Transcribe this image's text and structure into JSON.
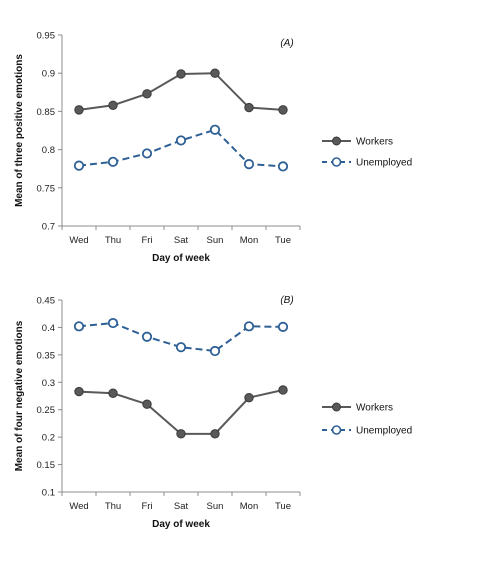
{
  "chart_data": [
    {
      "type": "line",
      "panel_label": "(A)",
      "xlabel": "Day of week",
      "ylabel": "Mean of three positive emotions",
      "categories": [
        "Wed",
        "Thu",
        "Fri",
        "Sat",
        "Sun",
        "Mon",
        "Tue"
      ],
      "ylim": [
        0.7,
        0.95
      ],
      "yticks": [
        "0.7",
        "0.75",
        "0.8",
        "0.85",
        "0.9",
        "0.95"
      ],
      "grid": false,
      "legend_position": "right",
      "series": [
        {
          "name": "Workers",
          "color": "#595959",
          "style": "solid",
          "marker": "filled-circle",
          "values": [
            0.852,
            0.858,
            0.873,
            0.899,
            0.9,
            0.855,
            0.852
          ]
        },
        {
          "name": "Unemployed",
          "color": "#2e6096",
          "style": "dashed",
          "marker": "open-circle",
          "values": [
            0.779,
            0.784,
            0.795,
            0.812,
            0.826,
            0.781,
            0.778
          ]
        }
      ]
    },
    {
      "type": "line",
      "panel_label": "(B)",
      "xlabel": "Day of week",
      "ylabel": "Mean of four negative emotions",
      "categories": [
        "Wed",
        "Thu",
        "Fri",
        "Sat",
        "Sun",
        "Mon",
        "Tue"
      ],
      "ylim": [
        0.1,
        0.45
      ],
      "yticks": [
        "0.1",
        "0.15",
        "0.2",
        "0.25",
        "0.3",
        "0.35",
        "0.4",
        "0.45"
      ],
      "grid": false,
      "legend_position": "right",
      "series": [
        {
          "name": "Workers",
          "color": "#595959",
          "style": "solid",
          "marker": "filled-circle",
          "values": [
            0.283,
            0.28,
            0.26,
            0.206,
            0.206,
            0.272,
            0.286
          ]
        },
        {
          "name": "Unemployed",
          "color": "#2e6096",
          "style": "dashed",
          "marker": "open-circle",
          "values": [
            0.402,
            0.408,
            0.383,
            0.364,
            0.357,
            0.402,
            0.401
          ]
        }
      ]
    }
  ]
}
